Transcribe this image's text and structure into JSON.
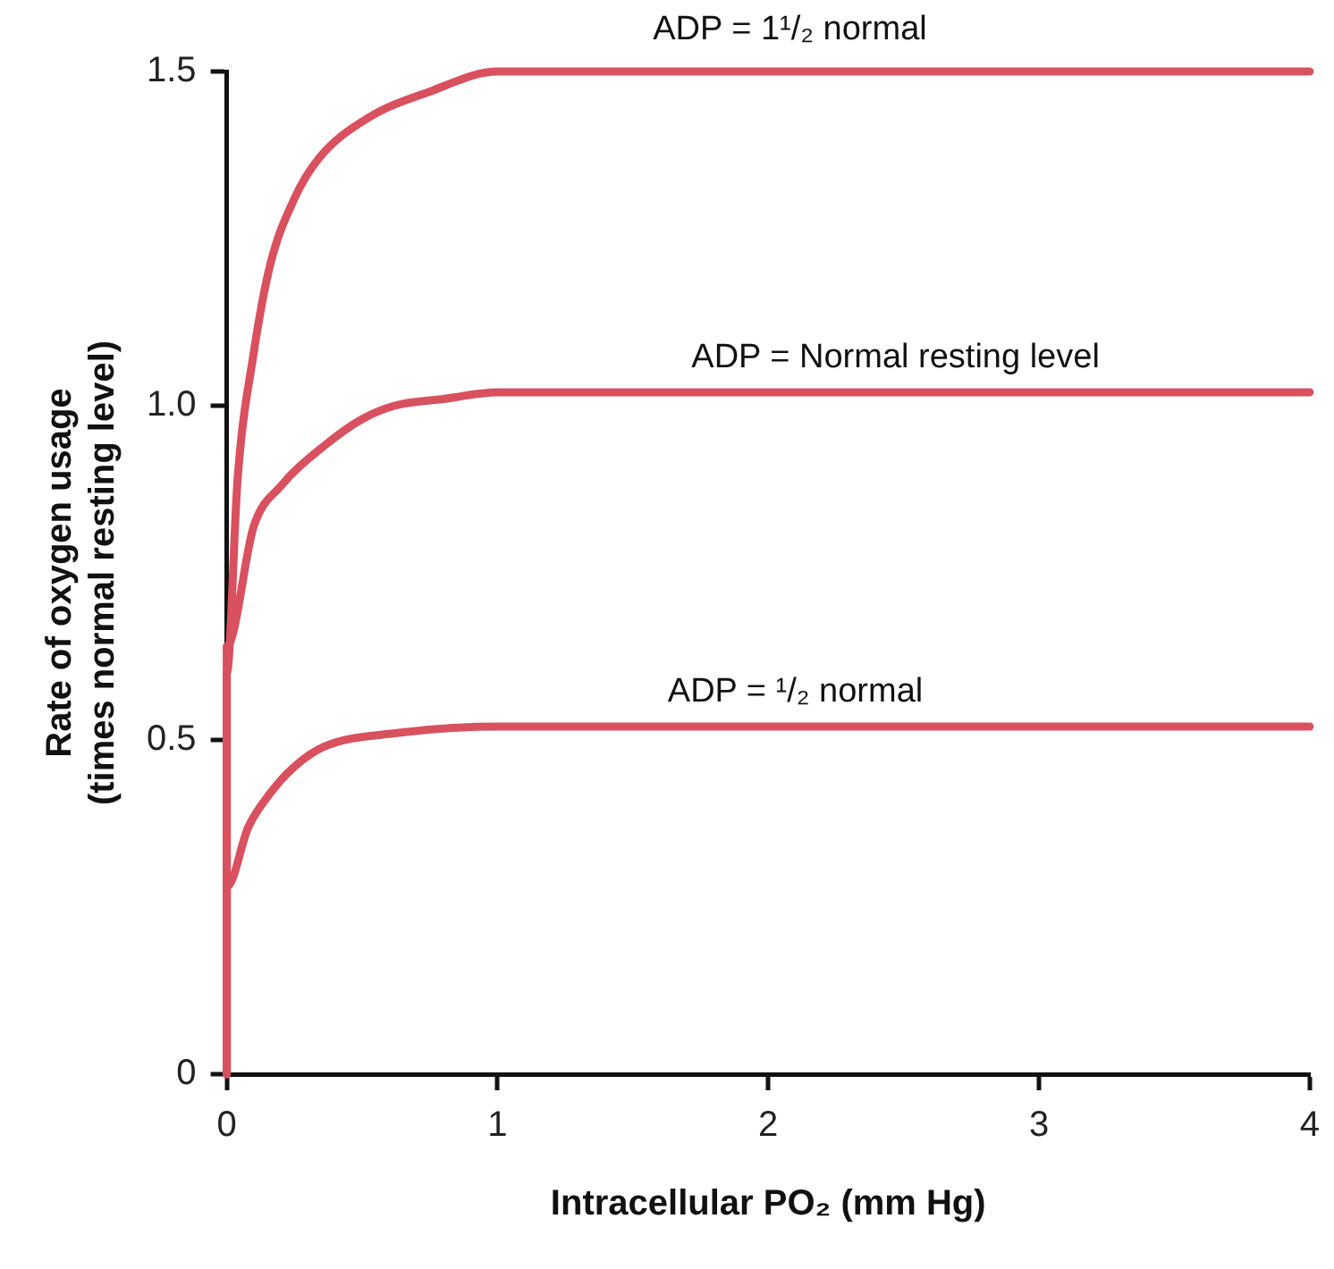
{
  "chart_data": {
    "type": "line",
    "xlabel": "Intracellular PO₂ (mm Hg)",
    "ylabel": "Rate of oxygen usage\n(times normal resting level)",
    "xlim": [
      0,
      4
    ],
    "xticks": [
      0,
      1,
      2,
      3,
      4
    ],
    "ylim": [
      0,
      1.5
    ],
    "yticks": [
      0,
      {
        "value": 0.5,
        "label": "0.5"
      },
      {
        "value": 1,
        "label": "1.0"
      },
      1.5
    ],
    "grid": false,
    "legend": false,
    "marker": "none",
    "line_style": "solid",
    "series": [
      {
        "color": "#d9505f",
        "x": [
          0,
          0,
          0.04,
          0.1,
          0.16,
          0.25,
          0.34,
          0.52,
          0.75,
          1,
          1.5,
          4
        ],
        "values": [
          0,
          0.6,
          0.89,
          1.08,
          1.21,
          1.31,
          1.37,
          1.43,
          1.47,
          1.5,
          1.5,
          1.5
        ]
      },
      {
        "color": "#d9505f",
        "x": [
          0,
          0,
          0.1,
          0.2,
          0.36,
          0.5,
          0.62,
          0.8,
          1,
          1.5,
          4
        ],
        "values": [
          0,
          0.64,
          0.82,
          0.88,
          0.94,
          0.98,
          1.0,
          1.01,
          1.02,
          1.02,
          1.02
        ]
      },
      {
        "color": "#d9505f",
        "x": [
          0,
          0,
          0.08,
          0.16,
          0.25,
          0.36,
          0.62,
          1,
          4
        ],
        "values": [
          0,
          0.28,
          0.37,
          0.42,
          0.46,
          0.49,
          0.51,
          0.52,
          0.52
        ]
      }
    ],
    "annotations": [
      {
        "text": "ADP = 1¹/₂ normal",
        "x": 2.08,
        "y": 1.51
      },
      {
        "text": "ADP = Normal resting level",
        "x": 2.47,
        "y": 1.02
      },
      {
        "text": "ADP = ¹/₂ normal",
        "x": 2.1,
        "y": 0.52
      }
    ]
  }
}
